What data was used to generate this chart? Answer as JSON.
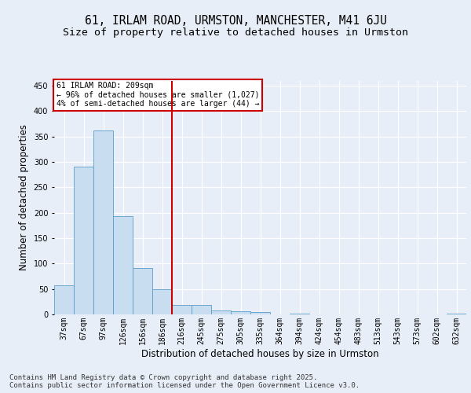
{
  "title_line1": "61, IRLAM ROAD, URMSTON, MANCHESTER, M41 6JU",
  "title_line2": "Size of property relative to detached houses in Urmston",
  "xlabel": "Distribution of detached houses by size in Urmston",
  "ylabel": "Number of detached properties",
  "categories": [
    "37sqm",
    "67sqm",
    "97sqm",
    "126sqm",
    "156sqm",
    "186sqm",
    "216sqm",
    "245sqm",
    "275sqm",
    "305sqm",
    "335sqm",
    "364sqm",
    "394sqm",
    "424sqm",
    "454sqm",
    "483sqm",
    "513sqm",
    "543sqm",
    "573sqm",
    "602sqm",
    "632sqm"
  ],
  "values": [
    57,
    290,
    362,
    193,
    91,
    50,
    18,
    18,
    7,
    6,
    4,
    0,
    1,
    0,
    0,
    0,
    0,
    0,
    0,
    0,
    2
  ],
  "bar_color": "#c9ddf0",
  "bar_edge_color": "#5a9ec9",
  "vline_position": 5.5,
  "vline_color": "#cc0000",
  "annotation_text": "61 IRLAM ROAD: 209sqm\n← 96% of detached houses are smaller (1,027)\n4% of semi-detached houses are larger (44) →",
  "annotation_box_color": "#ffffff",
  "annotation_box_edge_color": "#cc0000",
  "footer_text": "Contains HM Land Registry data © Crown copyright and database right 2025.\nContains public sector information licensed under the Open Government Licence v3.0.",
  "ylim": [
    0,
    460
  ],
  "yticks": [
    0,
    50,
    100,
    150,
    200,
    250,
    300,
    350,
    400,
    450
  ],
  "background_color": "#e8eef7",
  "grid_color": "#ffffff",
  "title_fontsize": 10.5,
  "subtitle_fontsize": 9.5,
  "axis_label_fontsize": 8.5,
  "tick_fontsize": 7,
  "footer_fontsize": 6.5,
  "annotation_fontsize": 7
}
